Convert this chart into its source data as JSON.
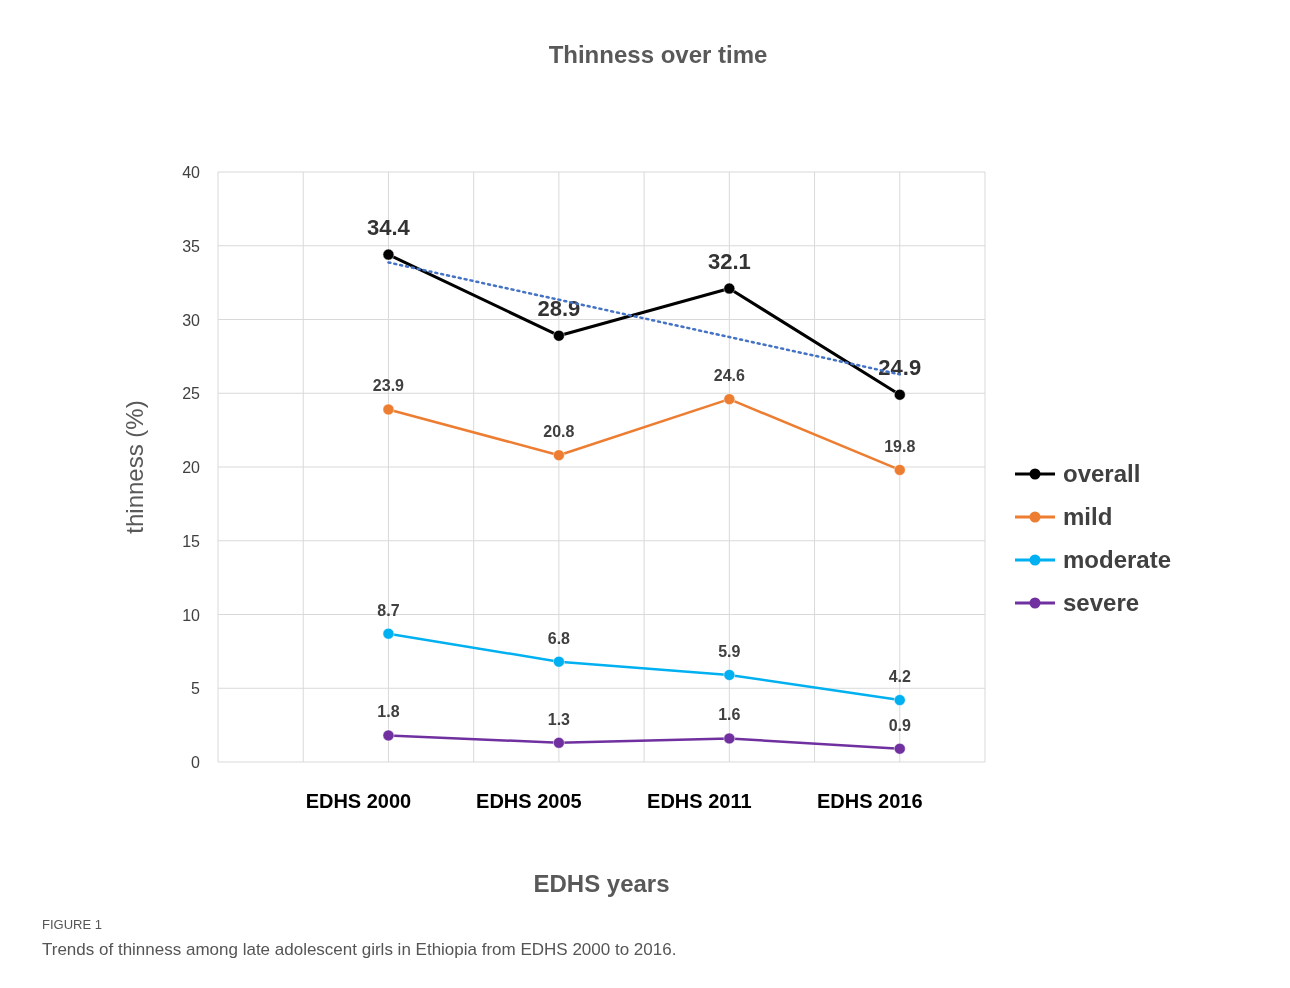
{
  "chart_data": {
    "type": "line",
    "title": "Thinness over time",
    "xlabel": "EDHS years",
    "ylabel": "thinness (%)",
    "categories": [
      "EDHS 2000",
      "EDHS 2005",
      "EDHS 2011",
      "EDHS 2016"
    ],
    "series": [
      {
        "name": "overall",
        "color": "#000000",
        "values": [
          34.4,
          28.9,
          32.1,
          24.9
        ],
        "value_labels": [
          "34.4",
          "28.9",
          "32.1",
          "24.9"
        ]
      },
      {
        "name": "mild",
        "color": "#ed7d31",
        "values": [
          23.9,
          20.8,
          24.6,
          19.8
        ],
        "value_labels": [
          "23.9",
          "20.8",
          "24.6",
          "19.8"
        ]
      },
      {
        "name": "moderate",
        "color": "#00b0f0",
        "values": [
          8.7,
          6.8,
          5.9,
          4.2
        ],
        "value_labels": [
          "8.7",
          "6.8",
          "5.9",
          "4.2"
        ]
      },
      {
        "name": "severe",
        "color": "#7030a0",
        "values": [
          1.8,
          1.3,
          1.6,
          0.9
        ],
        "value_labels": [
          "1.8",
          "1.3",
          "1.6",
          "0.9"
        ]
      },
      {
        "type": "line",
        "color": "#4472c4",
        "line_style": "dotted",
        "marker": "none",
        "values": [
          33.87,
          31.34,
          28.81,
          26.28
        ]
      }
    ],
    "ylim": [
      0,
      40
    ],
    "yticks": [
      0,
      5,
      10,
      15,
      20,
      25,
      30,
      35,
      40
    ],
    "grid": true,
    "legend": "right",
    "marker": "circle",
    "line_style": "solid",
    "annotations": [
      "FIGURE 1",
      "Trends of thinness among late adolescent girls in Ethiopia from EDHS 2000 to 2016."
    ]
  }
}
